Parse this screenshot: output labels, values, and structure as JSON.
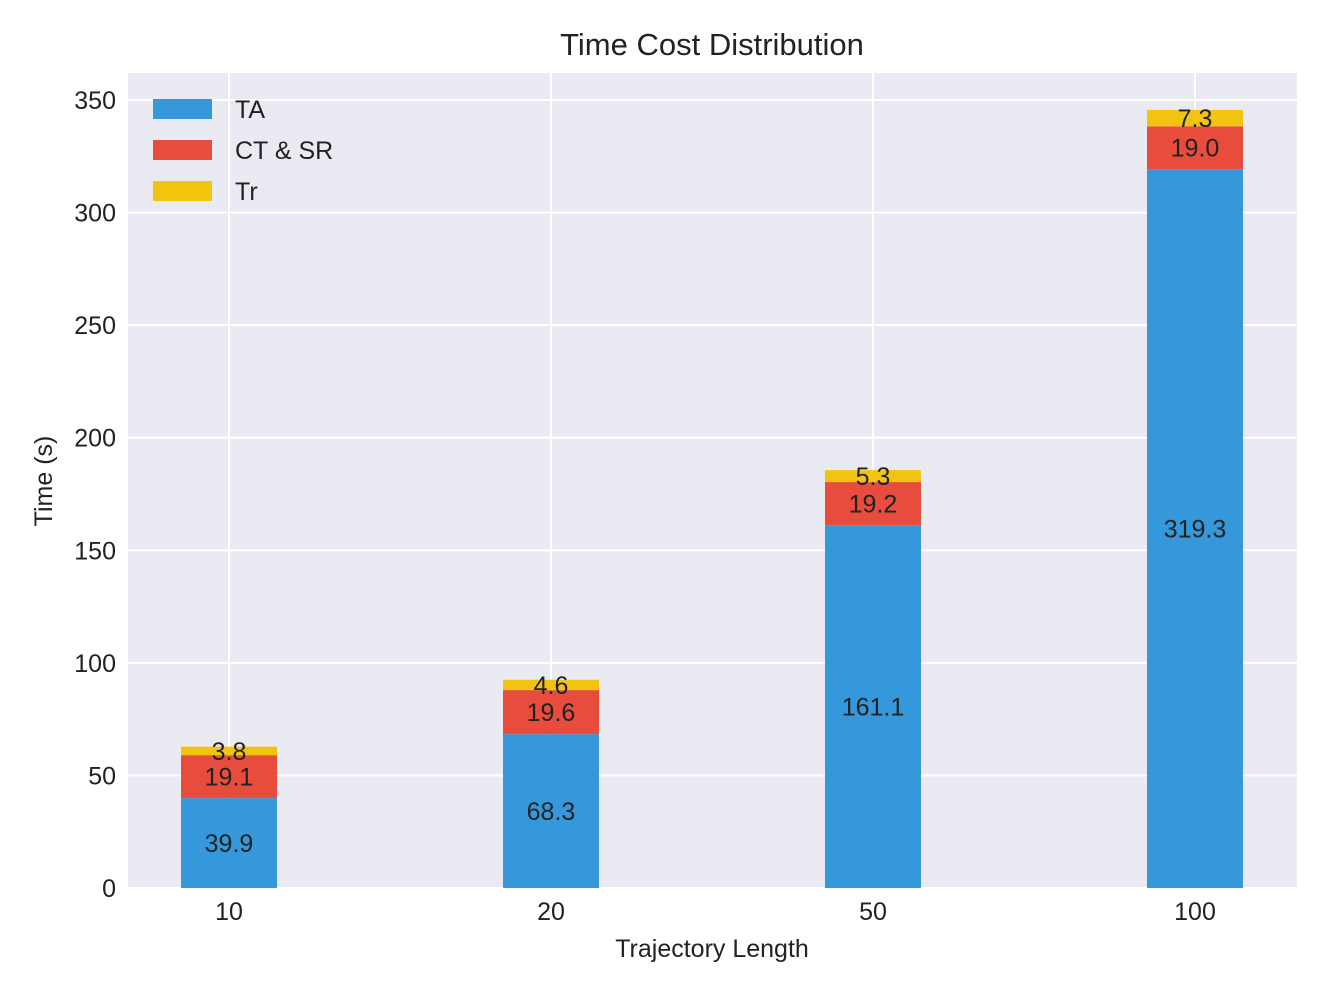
{
  "chart_data": {
    "type": "bar",
    "stacked": true,
    "title": "Time Cost Distribution",
    "xlabel": "Trajectory Length",
    "ylabel": "Time (s)",
    "categories": [
      "10",
      "20",
      "50",
      "100"
    ],
    "ylim": [
      0,
      362
    ],
    "yticks": [
      0,
      50,
      100,
      150,
      200,
      250,
      300,
      350
    ],
    "grid": true,
    "legend_position": "top-left",
    "series": [
      {
        "name": "TA",
        "color": "#3498db",
        "values": [
          39.9,
          68.3,
          161.1,
          319.3
        ],
        "labels": [
          "39.9",
          "68.3",
          "161.1",
          "319.3"
        ]
      },
      {
        "name": "CT & SR",
        "color": "#e74c3c",
        "values": [
          19.1,
          19.6,
          19.2,
          19.0
        ],
        "labels": [
          "19.1",
          "19.6",
          "19.2",
          "19.0"
        ]
      },
      {
        "name": "Tr",
        "color": "#f1c40f",
        "values": [
          3.8,
          4.6,
          5.3,
          7.3
        ],
        "labels": [
          "3.8",
          "4.6",
          "5.3",
          "7.3"
        ]
      }
    ]
  }
}
